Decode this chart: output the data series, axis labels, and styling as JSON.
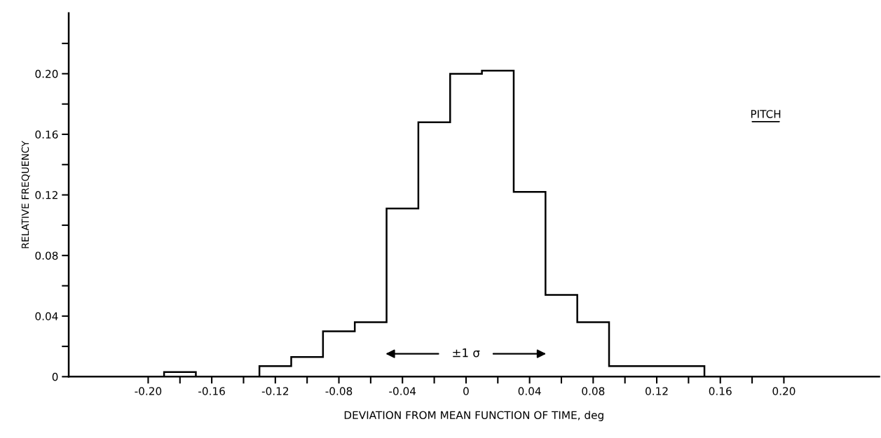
{
  "chart_data": {
    "type": "histogram",
    "xlabel": "DEVIATION FROM MEAN FUNCTION OF TIME, deg",
    "ylabel": "RELATIVE FREQUENCY",
    "bins": [
      -0.19,
      -0.17,
      -0.15,
      -0.13,
      -0.11,
      -0.09,
      -0.07,
      -0.05,
      -0.03,
      -0.01,
      0.01,
      0.03,
      0.05,
      0.07,
      0.09,
      0.11,
      0.13,
      0.15
    ],
    "values": [
      0.003,
      0,
      0,
      0.007,
      0.013,
      0.03,
      0.036,
      0.111,
      0.168,
      0.2,
      0.202,
      0.122,
      0.054,
      0.036,
      0.007,
      0.007,
      0.007
    ],
    "color": "#000000",
    "xlim": [
      -0.25,
      0.26
    ],
    "ylim": [
      0,
      0.24
    ],
    "xticks": [
      {
        "value": -0.2,
        "label": "-0.20"
      },
      {
        "value": -0.18,
        "label": null
      },
      -0.16,
      {
        "value": -0.14,
        "label": null
      },
      -0.12,
      {
        "value": -0.1,
        "label": null
      },
      -0.08,
      {
        "value": -0.06,
        "label": null
      },
      -0.04,
      {
        "value": -0.02,
        "label": null
      },
      0,
      {
        "value": 0.02,
        "label": null
      },
      0.04,
      {
        "value": 0.06,
        "label": null
      },
      0.08,
      {
        "value": 0.1,
        "label": null
      },
      0.12,
      {
        "value": 0.14,
        "label": null
      },
      0.16,
      {
        "value": 0.18,
        "label": null
      },
      {
        "value": 0.2,
        "label": "0.20"
      }
    ],
    "yticks": [
      0,
      {
        "value": 0.02,
        "label": null
      },
      0.04,
      {
        "value": 0.06,
        "label": null
      },
      0.08,
      {
        "value": 0.1,
        "label": null
      },
      0.12,
      {
        "value": 0.14,
        "label": null
      },
      0.16,
      {
        "value": 0.18,
        "label": null
      },
      {
        "value": 0.2,
        "label": "0.20"
      },
      {
        "value": 0.22,
        "label": null
      }
    ],
    "annotations": [
      "PITCH",
      "±1 σ"
    ],
    "grid": false,
    "legend": false
  }
}
